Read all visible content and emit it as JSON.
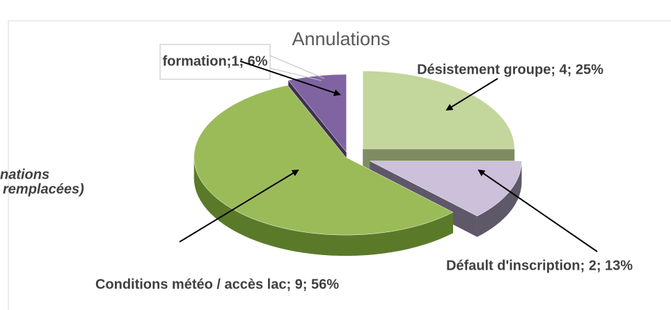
{
  "chart_data": {
    "type": "pie",
    "title": "Annulations",
    "values": [
      4,
      2,
      9,
      1
    ],
    "value_labels": [
      "Désistement groupe; 4; 25%",
      "Défault d'inscription; 2; 13%",
      "Conditions météo / accès lac; 9; 56%",
      "formation;1; 6%"
    ],
    "colors": [
      "#c3d69b",
      "#ccc0da",
      "#9bbb59",
      "#8064a2"
    ],
    "side_colors": [
      "#7f8c62",
      "#5e5869",
      "#5a7a2a",
      "#3f3151"
    ],
    "annotations": [
      "nations",
      "remplacées)"
    ]
  }
}
